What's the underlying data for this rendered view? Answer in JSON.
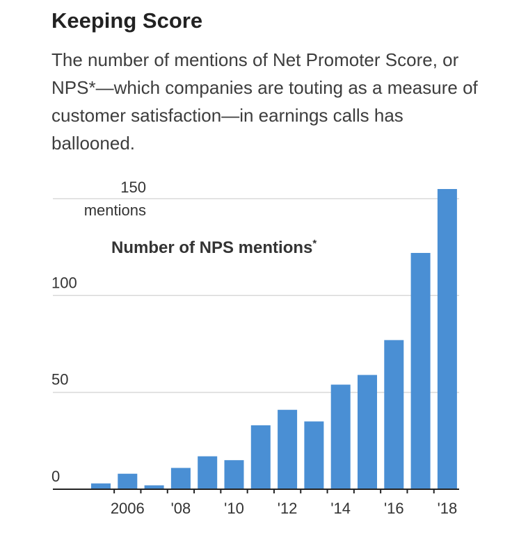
{
  "headline": "Keeping Score",
  "dek": "The number of mentions of Net Promoter Score, or NPS*—which companies are touting as a measure of customer satisfaction—in earnings calls has ballooned.",
  "chart_data": {
    "type": "bar",
    "title": "Number of NPS mentions*",
    "y_unit_label": "mentions",
    "categories": [
      "2005",
      "2006",
      "2007",
      "2008",
      "2009",
      "2010",
      "2011",
      "2012",
      "2013",
      "2014",
      "2015",
      "2016",
      "2017",
      "2018"
    ],
    "x_tick_labels": [
      "2006",
      "'08",
      "'10",
      "'12",
      "'14",
      "'16",
      "'18"
    ],
    "x_tick_label_categories": [
      "2006",
      "2008",
      "2010",
      "2012",
      "2014",
      "2016",
      "2018"
    ],
    "series": [
      {
        "values": [
          3,
          8,
          2,
          11,
          17,
          15,
          33,
          41,
          35,
          54,
          59,
          77,
          122,
          155
        ]
      }
    ],
    "y_ticks": [
      0,
      50,
      100,
      150
    ],
    "ylim": [
      0,
      155
    ],
    "grid": true,
    "bar_color": "#4a8fd4"
  }
}
